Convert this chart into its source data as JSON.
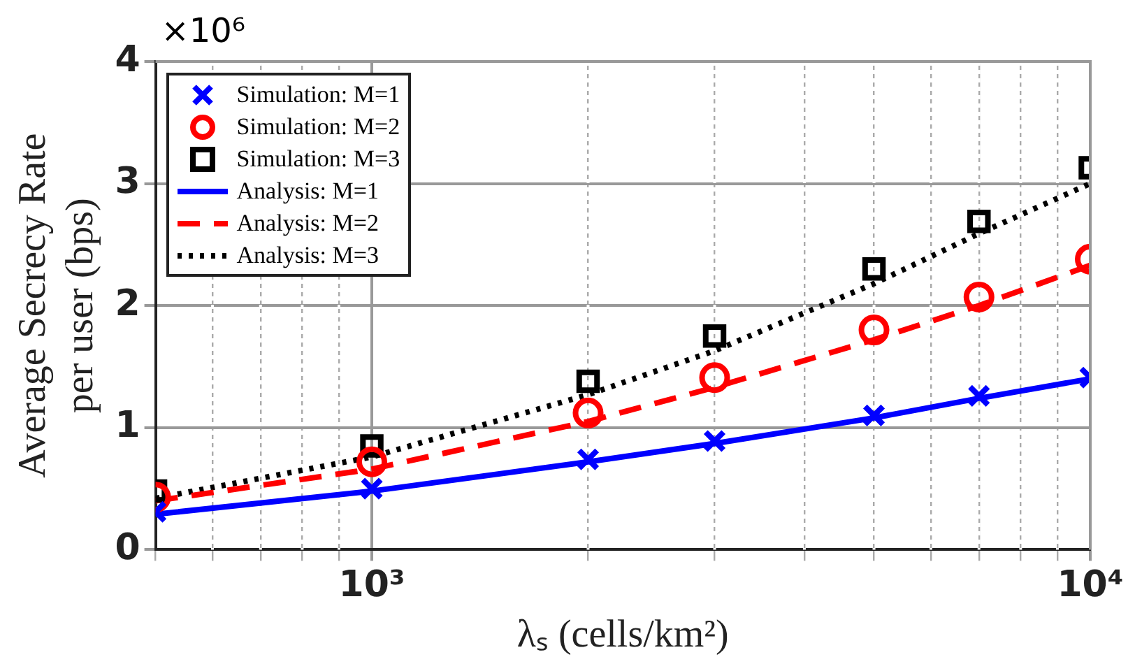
{
  "chart_data": {
    "type": "line",
    "xlabel": "λₛ (cells/km²)",
    "ylabel": "Average Secrecy Rate\nper user (bps)",
    "annotations": [
      "×10⁶"
    ],
    "log": "x",
    "grid": true,
    "legend": "top left",
    "x": [
      500,
      1000,
      2000,
      3000,
      5000,
      7000,
      10000
    ],
    "xlim": [
      500,
      10000
    ],
    "xticks": [
      {
        "value": 500,
        "label": null
      },
      {
        "value": 600,
        "label": null
      },
      {
        "value": 700,
        "label": null
      },
      {
        "value": 800,
        "label": null
      },
      {
        "value": 900,
        "label": null
      },
      {
        "value": 1000,
        "label": "10³"
      },
      {
        "value": 2000,
        "label": null
      },
      {
        "value": 3000,
        "label": null
      },
      {
        "value": 4000,
        "label": null
      },
      {
        "value": 5000,
        "label": null
      },
      {
        "value": 6000,
        "label": null
      },
      {
        "value": 7000,
        "label": null
      },
      {
        "value": 8000,
        "label": null
      },
      {
        "value": 9000,
        "label": null
      },
      {
        "value": 10000,
        "label": "10⁴"
      }
    ],
    "ylim": [
      0,
      4
    ],
    "yticks": [
      0,
      1,
      2,
      3,
      4
    ],
    "series": [
      {
        "name": "Simulation: M=1",
        "type": "scatter",
        "marker": "cross",
        "color": "#0000ff",
        "values": [
          0.31,
          0.5,
          0.74,
          0.89,
          1.1,
          1.26,
          1.41
        ]
      },
      {
        "name": "Simulation: M=2",
        "type": "scatter",
        "marker": "circle",
        "color": "#ff0000",
        "values": [
          0.43,
          0.72,
          1.12,
          1.41,
          1.8,
          2.07,
          2.38
        ]
      },
      {
        "name": "Simulation: M=3",
        "type": "scatter",
        "marker": "square",
        "color": "#000000",
        "values": [
          0.48,
          0.85,
          1.38,
          1.75,
          2.3,
          2.69,
          3.13
        ]
      },
      {
        "name": "Analysis: M=1",
        "line_style": "solid",
        "color": "#0000ff",
        "values": [
          0.29,
          0.48,
          0.72,
          0.87,
          1.08,
          1.24,
          1.4
        ]
      },
      {
        "name": "Analysis: M=2",
        "line_style": "dashed",
        "color": "#ff0000",
        "values": [
          0.4,
          0.66,
          1.05,
          1.33,
          1.72,
          2.0,
          2.33
        ]
      },
      {
        "name": "Analysis: M=3",
        "line_style": "dotted",
        "color": "#000000",
        "values": [
          0.42,
          0.76,
          1.27,
          1.63,
          2.18,
          2.59,
          3.0
        ]
      }
    ]
  }
}
